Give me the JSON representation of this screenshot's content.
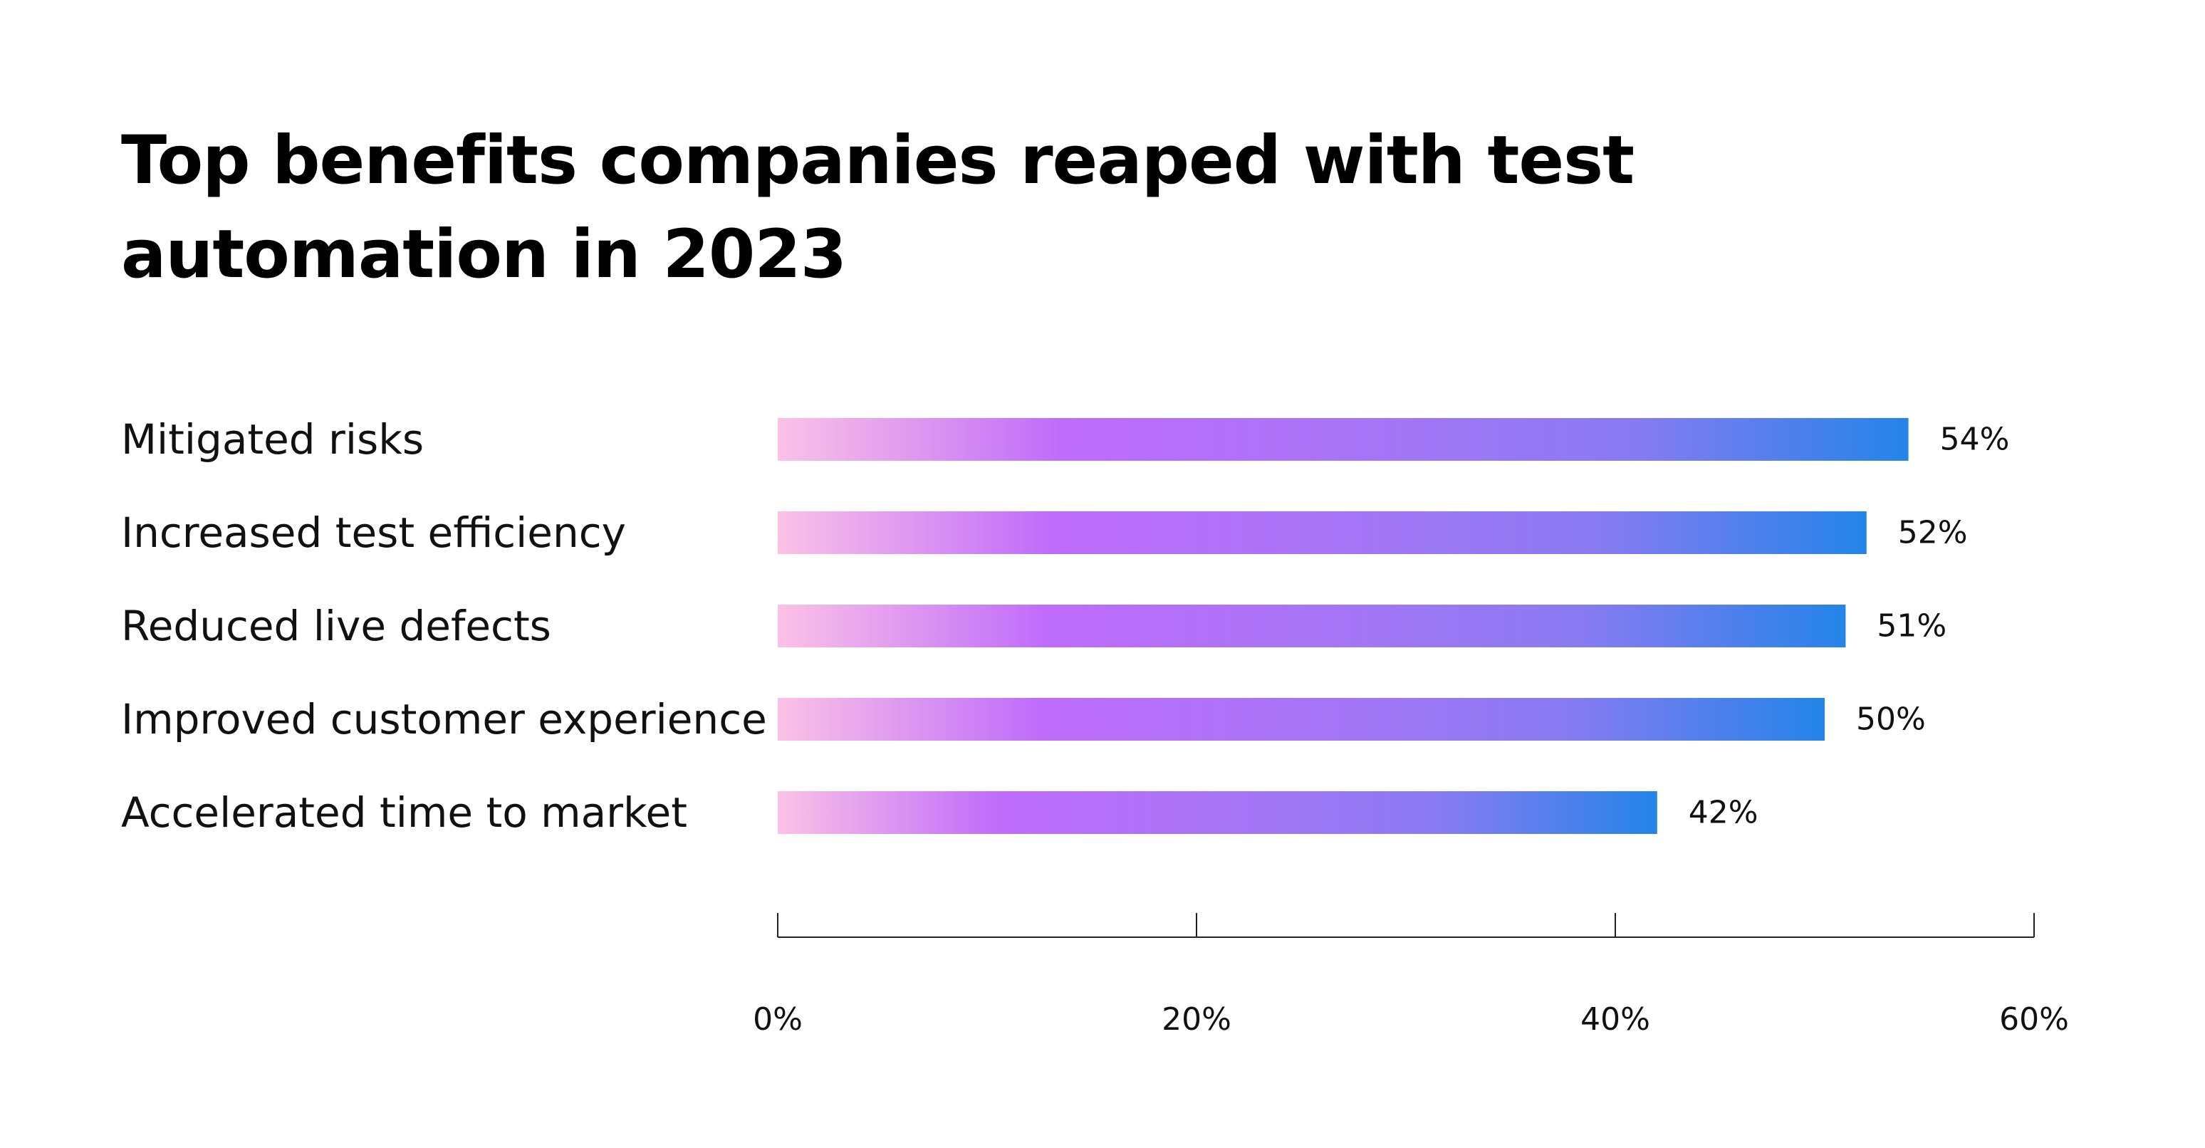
{
  "chart_data": {
    "type": "bar",
    "orientation": "horizontal",
    "title": "Top benefits companies reaped with test automation in 2023",
    "title_lines": [
      "Top benefits companies reaped with test",
      "automation in 2023"
    ],
    "categories": [
      "Mitigated risks",
      "Increased test efficiency",
      "Reduced live defects",
      "Improved customer experience",
      "Accelerated time to market"
    ],
    "values": [
      54,
      52,
      51,
      50,
      42
    ],
    "value_labels": [
      "54%",
      "52%",
      "51%",
      "50%",
      "42%"
    ],
    "xlim": [
      0,
      60
    ],
    "x_ticks": [
      0,
      20,
      40,
      60
    ],
    "x_tick_labels": [
      "0%",
      "20%",
      "40%",
      "60%"
    ],
    "xlabel": "",
    "ylabel": "",
    "grid": false,
    "legend": "none",
    "bar_gradient": [
      "#fbc2e6",
      "#bf6cfb",
      "#a874f6",
      "#8a7bf2",
      "#2384e8"
    ]
  }
}
